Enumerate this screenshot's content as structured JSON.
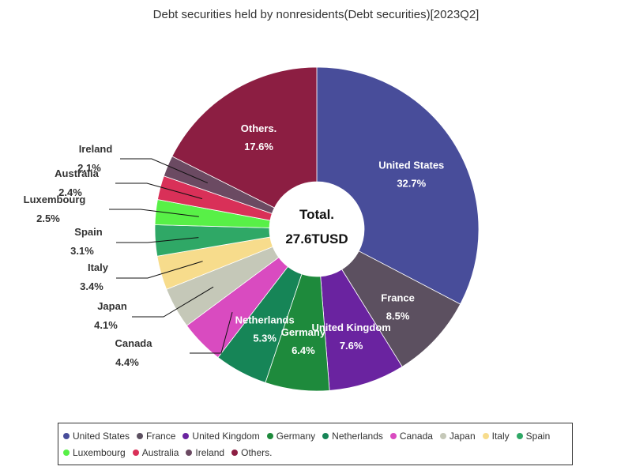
{
  "title": "Debt securities held by nonresidents(Debt securities)[2023Q2]",
  "center_label": {
    "line1": "Total.",
    "line2": "27.6TUSD"
  },
  "chart_data": {
    "type": "pie",
    "title": "Debt securities held by nonresidents(Debt securities)[2023Q2]",
    "total": "27.6TUSD",
    "slices": [
      {
        "label": "United States",
        "value": 32.7,
        "display": "32.7%",
        "color": "#484d9a"
      },
      {
        "label": "France",
        "value": 8.5,
        "display": "8.5%",
        "color": "#5c5060"
      },
      {
        "label": "United Kingdom",
        "value": 7.6,
        "display": "7.6%",
        "color": "#6a23a0"
      },
      {
        "label": "Germany",
        "value": 6.4,
        "display": "6.4%",
        "color": "#1e8a3c"
      },
      {
        "label": "Netherlands",
        "value": 5.3,
        "display": "5.3%",
        "color": "#168557"
      },
      {
        "label": "Canada",
        "value": 4.4,
        "display": "4.4%",
        "color": "#d94bc0"
      },
      {
        "label": "Japan",
        "value": 4.1,
        "display": "4.1%",
        "color": "#c5c8b8"
      },
      {
        "label": "Italy",
        "value": 3.4,
        "display": "3.4%",
        "color": "#f7dc8c"
      },
      {
        "label": "Spain",
        "value": 3.1,
        "display": "3.1%",
        "color": "#2fa866"
      },
      {
        "label": "Luxembourg",
        "value": 2.5,
        "display": "2.5%",
        "color": "#58f047"
      },
      {
        "label": "Australia",
        "value": 2.4,
        "display": "2.4%",
        "color": "#d93058"
      },
      {
        "label": "Ireland",
        "value": 2.1,
        "display": "2.1%",
        "color": "#6b4a62"
      },
      {
        "label": "Others.",
        "value": 17.6,
        "display": "17.6%",
        "color": "#8c1e42"
      }
    ]
  }
}
